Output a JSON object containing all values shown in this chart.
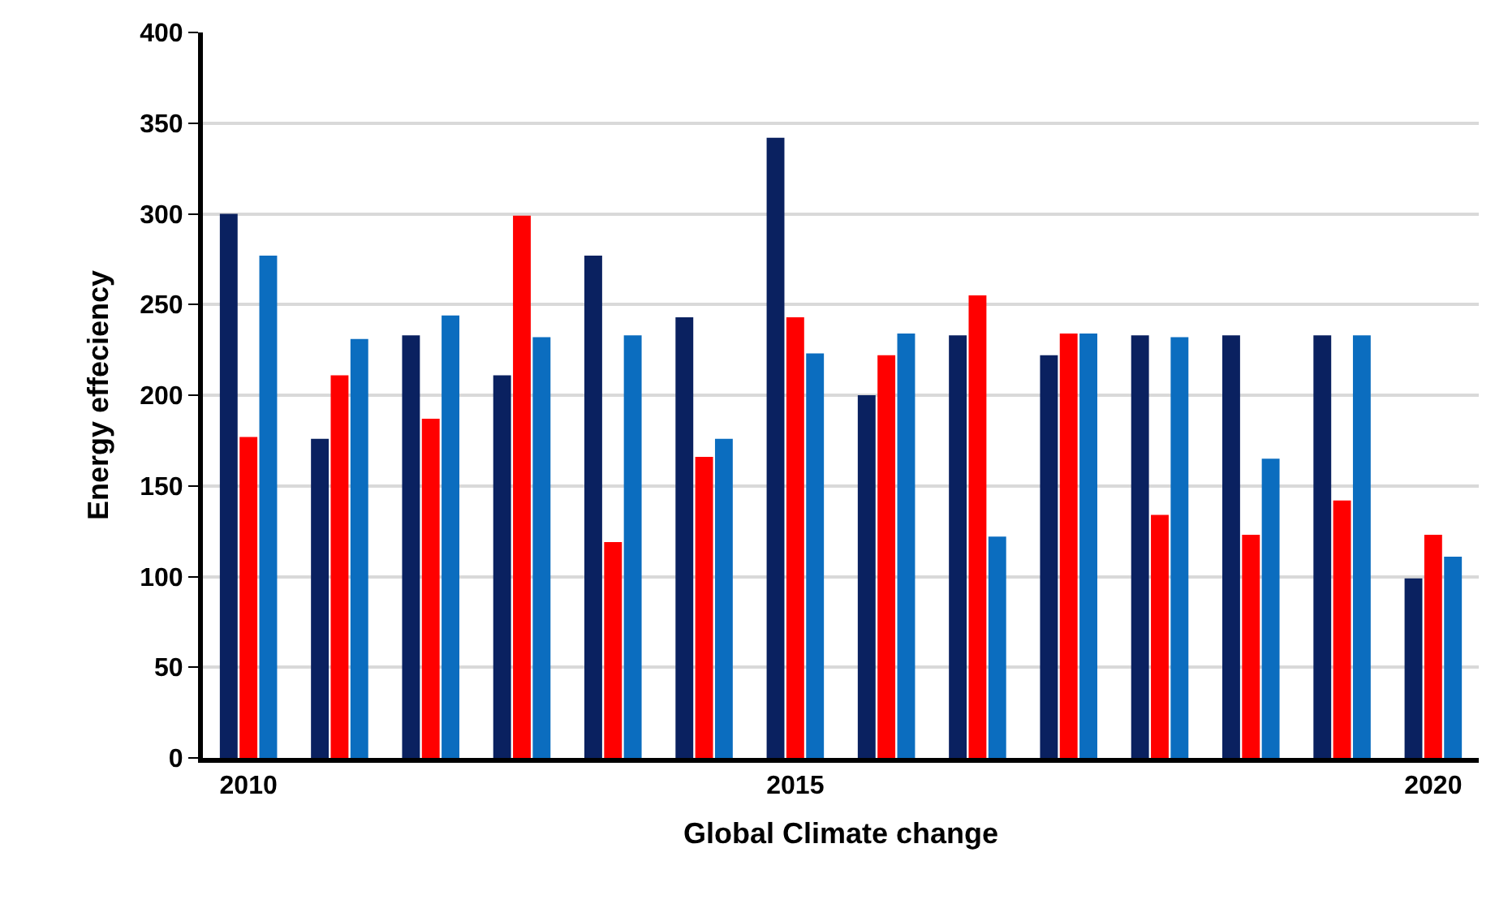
{
  "chart_data": {
    "type": "bar",
    "xlabel": "Global Climate change",
    "ylabel": "Energy effeciency",
    "categories": [
      "2010",
      null,
      null,
      null,
      null,
      null,
      "2015",
      null,
      null,
      null,
      null,
      null,
      null,
      "2020"
    ],
    "series": [
      {
        "color": "#0a2160",
        "values": [
          300,
          176,
          233,
          211,
          277,
          243,
          342,
          200,
          233,
          222,
          233,
          233,
          233,
          99
        ]
      },
      {
        "color": "#ff0000",
        "values": [
          177,
          211,
          187,
          299,
          119,
          166,
          243,
          222,
          255,
          234,
          134,
          123,
          142,
          123
        ]
      },
      {
        "color": "#0b6dbf",
        "values": [
          277,
          231,
          244,
          232,
          233,
          176,
          223,
          234,
          122,
          234,
          232,
          165,
          233,
          111
        ]
      }
    ],
    "ylim": [
      0,
      400
    ],
    "yticks": [
      0,
      50,
      100,
      150,
      200,
      250,
      300,
      350,
      400
    ],
    "grid": "y"
  }
}
